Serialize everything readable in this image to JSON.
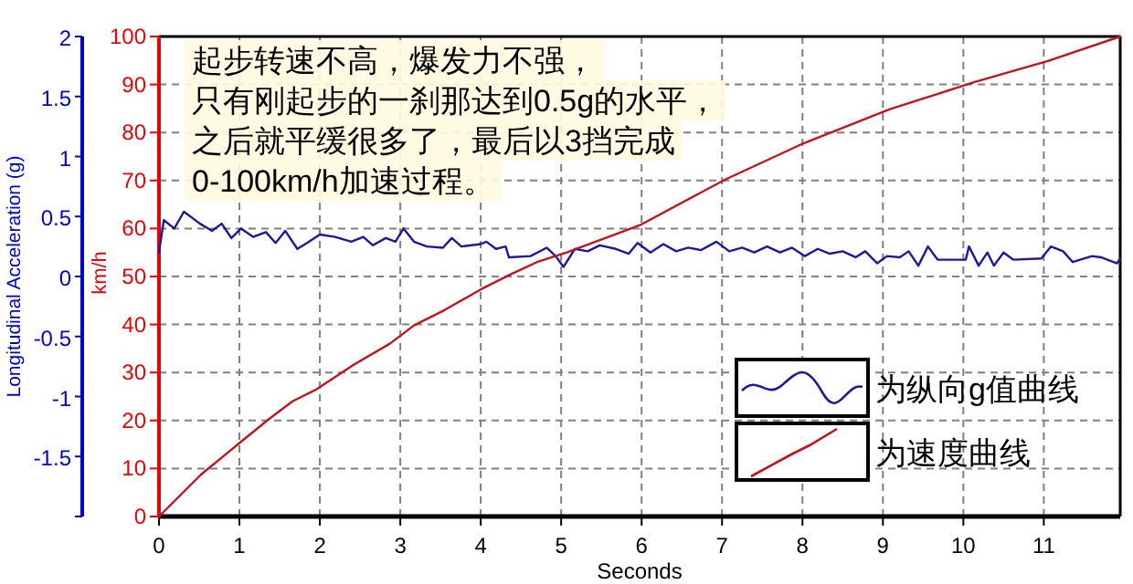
{
  "chart_data": {
    "type": "line",
    "xlabel": "Seconds",
    "ylabel": "km/h",
    "y2label": "Longitudinal Acceleration (g)",
    "annotations": [
      "起步转速不高，爆发力不强，",
      "只有刚起步的一刹那达到0.5g的水平，",
      "之后就平缓很多了，最后以3挡完成",
      "0-100km/h加速过程。"
    ],
    "xlim": [
      0,
      11.95
    ],
    "xticks": [
      0,
      1,
      2,
      3,
      4,
      5,
      6,
      7,
      8,
      9,
      10,
      11
    ],
    "ylim": [
      0,
      100
    ],
    "yticks": [
      0,
      10,
      20,
      30,
      40,
      50,
      60,
      70,
      80,
      90,
      100
    ],
    "y2lim": [
      -2,
      2
    ],
    "y2ticks": [
      {
        "value": -2,
        "label": null
      },
      -1.5,
      -1,
      -0.5,
      0,
      0.5,
      1,
      1.5,
      2
    ],
    "grid": true,
    "legend": "bottom right",
    "line_style": "solid",
    "series": [
      {
        "name": "为纵向g值曲线",
        "color": "#1a1a9c",
        "axis": "y2",
        "x": [
          0,
          0.06,
          0.19,
          0.31,
          0.51,
          0.66,
          0.78,
          0.9,
          1.02,
          1.17,
          1.33,
          1.45,
          1.57,
          1.72,
          1.84,
          2.0,
          2.19,
          2.39,
          2.54,
          2.66,
          2.82,
          2.94,
          3.04,
          3.17,
          3.33,
          3.53,
          3.64,
          3.76,
          4.0,
          4.07,
          4.19,
          4.31,
          4.35,
          4.62,
          4.82,
          4.93,
          5.03,
          5.17,
          5.33,
          5.48,
          5.68,
          5.84,
          5.95,
          6.11,
          6.27,
          6.43,
          6.58,
          6.74,
          6.93,
          7.09,
          7.25,
          7.4,
          7.56,
          7.72,
          7.87,
          8.03,
          8.19,
          8.34,
          8.5,
          8.66,
          8.78,
          8.93,
          9.05,
          9.21,
          9.32,
          9.44,
          9.56,
          9.68,
          10.03,
          10.07,
          10.19,
          10.3,
          10.38,
          10.5,
          10.62,
          10.97,
          11.09,
          11.24,
          11.36,
          11.6,
          11.71,
          11.91,
          11.95
        ],
        "values": [
          0.2,
          0.47,
          0.4,
          0.54,
          0.44,
          0.38,
          0.44,
          0.32,
          0.4,
          0.33,
          0.37,
          0.28,
          0.38,
          0.23,
          0.28,
          0.35,
          0.33,
          0.29,
          0.33,
          0.26,
          0.32,
          0.29,
          0.4,
          0.29,
          0.25,
          0.24,
          0.32,
          0.25,
          0.27,
          0.29,
          0.23,
          0.25,
          0.16,
          0.17,
          0.24,
          0.17,
          0.08,
          0.23,
          0.21,
          0.26,
          0.23,
          0.19,
          0.28,
          0.2,
          0.27,
          0.21,
          0.24,
          0.22,
          0.29,
          0.21,
          0.24,
          0.2,
          0.25,
          0.2,
          0.24,
          0.17,
          0.23,
          0.19,
          0.21,
          0.16,
          0.21,
          0.11,
          0.17,
          0.16,
          0.21,
          0.09,
          0.25,
          0.14,
          0.14,
          0.25,
          0.09,
          0.2,
          0.09,
          0.2,
          0.14,
          0.15,
          0.25,
          0.21,
          0.12,
          0.17,
          0.16,
          0.11,
          0.15
        ]
      },
      {
        "name": "为速度曲线",
        "color": "#c0141e",
        "x": [
          0,
          0.52,
          1.0,
          1.36,
          1.66,
          1.96,
          2.42,
          2.87,
          3.17,
          3.55,
          4.01,
          4.39,
          4.7,
          5.07,
          5.98,
          7.04,
          8.02,
          9.08,
          10.14,
          11.05,
          11.95
        ],
        "values": [
          0,
          8.7,
          15.3,
          20.2,
          24,
          26.5,
          31.6,
          36,
          39.8,
          43,
          47.4,
          50.6,
          53,
          55,
          60.7,
          70.2,
          77.8,
          84.8,
          90.5,
          94.9,
          100
        ]
      }
    ]
  }
}
